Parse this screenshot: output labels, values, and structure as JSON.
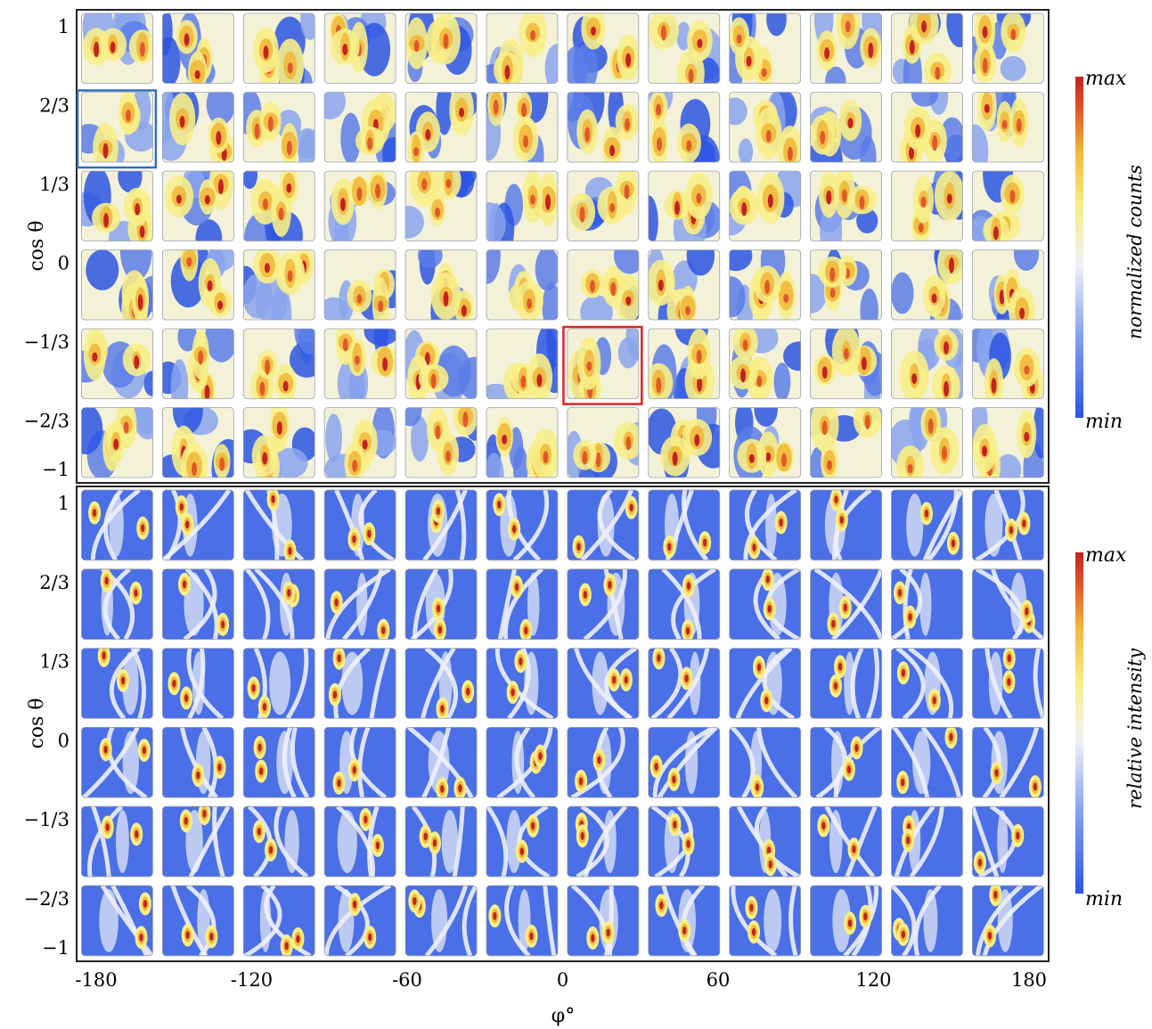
{
  "chart_data": [
    {
      "type": "heatmap",
      "title": "",
      "ylabel": "cos θ",
      "xlabel": "",
      "y_ticks": [
        "1",
        "2/3",
        "1/3",
        "0",
        "−1/3",
        "−2/3",
        "−1"
      ],
      "grid": {
        "rows": 6,
        "cols": 12
      },
      "colorbar": {
        "label": "normalized counts",
        "max_label": "max",
        "min_label": "min",
        "colors": [
          "#2b55e3",
          "#8aa5ee",
          "#f2f2f8",
          "#f7ee88",
          "#f1b83c",
          "#e0592a",
          "#c42222"
        ]
      },
      "highlights": [
        {
          "row": 1,
          "col": 0,
          "color": "#2f6fb8"
        },
        {
          "row": 4,
          "col": 6,
          "color": "#e02424"
        }
      ],
      "style": "measured",
      "legend": "right"
    },
    {
      "type": "heatmap",
      "title": "",
      "ylabel": "cos θ",
      "xlabel": "φ°",
      "y_ticks": [
        "1",
        "2/3",
        "1/3",
        "0",
        "−1/3",
        "−2/3",
        "−1"
      ],
      "x_ticks": [
        "-180",
        "-120",
        "-60",
        "0",
        "60",
        "120",
        "180"
      ],
      "xlim": [
        -180,
        180
      ],
      "grid": {
        "rows": 6,
        "cols": 12
      },
      "colorbar": {
        "label": "relative intensity",
        "max_label": "max",
        "min_label": "min",
        "colors": [
          "#2b55e3",
          "#8aa5ee",
          "#f2f2f8",
          "#f7ee88",
          "#f1b83c",
          "#e0592a",
          "#c42222"
        ]
      },
      "style": "simulated",
      "legend": "right"
    }
  ]
}
